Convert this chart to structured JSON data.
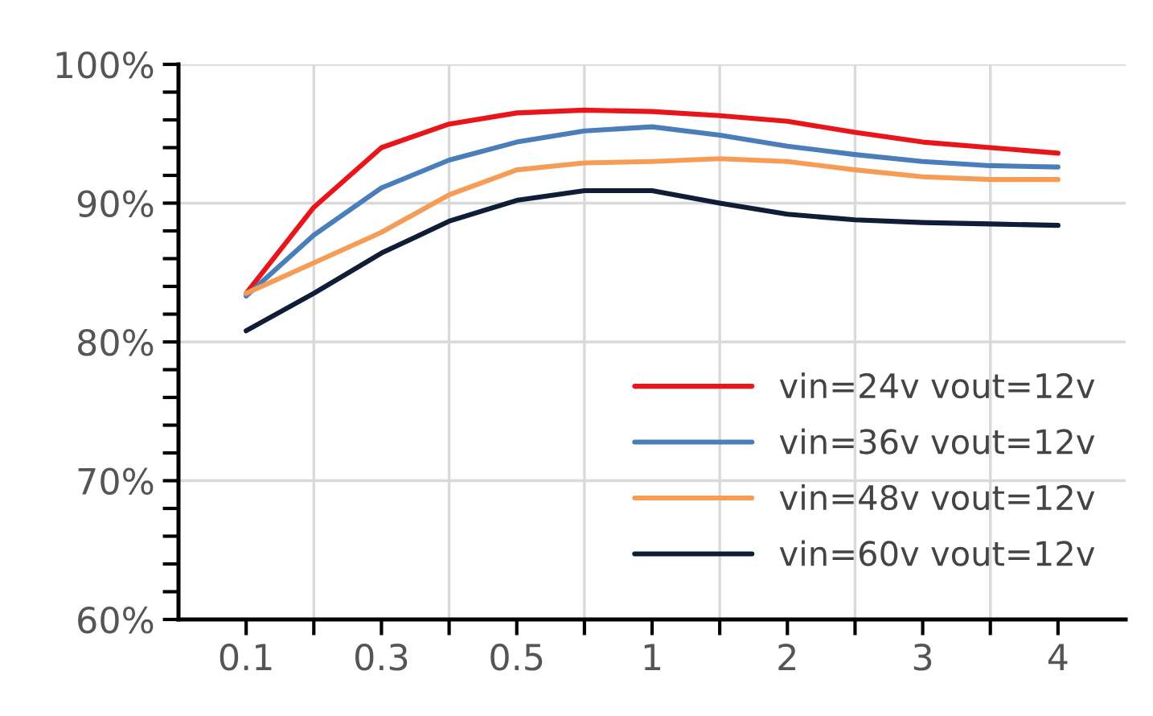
{
  "chart_data": {
    "type": "line",
    "categories": [
      "0.1",
      null,
      "0.3",
      null,
      "0.5",
      null,
      "1",
      null,
      "2",
      null,
      "3",
      null,
      "4"
    ],
    "ylim": [
      60,
      100
    ],
    "yticks": [
      {
        "value": 60,
        "label": "60%"
      },
      {
        "value": 62,
        "label": null
      },
      {
        "value": 64,
        "label": null
      },
      {
        "value": 66,
        "label": null
      },
      {
        "value": 68,
        "label": null
      },
      {
        "value": 70,
        "label": "70%"
      },
      {
        "value": 72,
        "label": null
      },
      {
        "value": 74,
        "label": null
      },
      {
        "value": 76,
        "label": null
      },
      {
        "value": 78,
        "label": null
      },
      {
        "value": 80,
        "label": "80%"
      },
      {
        "value": 82,
        "label": null
      },
      {
        "value": 84,
        "label": null
      },
      {
        "value": 86,
        "label": null
      },
      {
        "value": 88,
        "label": null
      },
      {
        "value": 90,
        "label": "90%"
      },
      {
        "value": 92,
        "label": null
      },
      {
        "value": 94,
        "label": null
      },
      {
        "value": 96,
        "label": null
      },
      {
        "value": 98,
        "label": null
      },
      {
        "value": 100,
        "label": "100%"
      }
    ],
    "series": [
      {
        "name": "vin=24v vout=12v",
        "color": "#e8151b",
        "values": [
          83.5,
          89.7,
          94.0,
          95.7,
          96.5,
          96.7,
          96.6,
          96.3,
          95.9,
          95.1,
          94.4,
          94.0,
          93.6
        ]
      },
      {
        "name": "vin=36v vout=12v",
        "color": "#4a7ebb",
        "values": [
          83.3,
          87.7,
          91.1,
          93.1,
          94.4,
          95.2,
          95.5,
          94.9,
          94.1,
          93.5,
          93.0,
          92.7,
          92.6
        ]
      },
      {
        "name": "vin=48v vout=12v",
        "color": "#f59d56",
        "values": [
          83.5,
          85.7,
          87.9,
          90.6,
          92.4,
          92.9,
          93.0,
          93.2,
          93.0,
          92.4,
          91.9,
          91.7,
          91.7
        ]
      },
      {
        "name": "vin=60v vout=12v",
        "color": "#0f1d36",
        "values": [
          80.8,
          83.5,
          86.4,
          88.7,
          90.2,
          90.9,
          90.9,
          90.0,
          89.2,
          88.8,
          88.6,
          88.5,
          88.4
        ]
      }
    ],
    "grid": true,
    "legend": "bottom right",
    "line_style": "solid"
  }
}
